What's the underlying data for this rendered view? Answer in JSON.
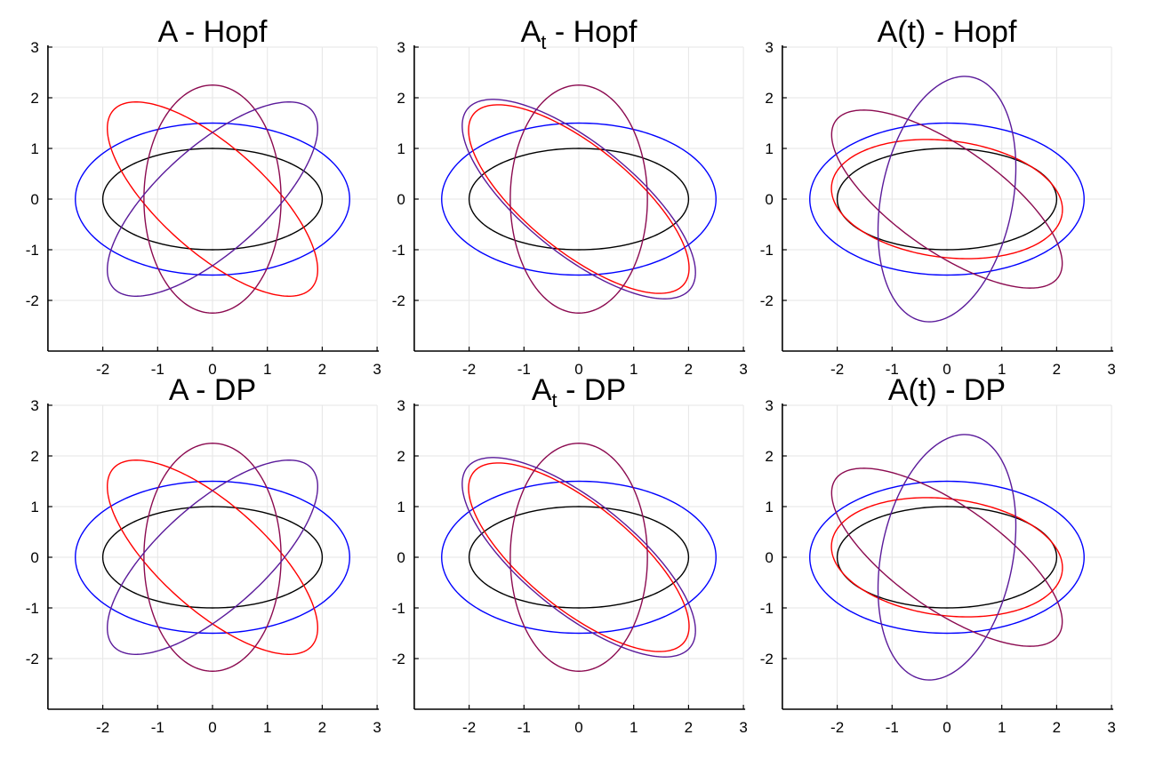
{
  "chart_data": [
    {
      "type": "line",
      "title": {
        "base": "A",
        "sub": "",
        "suffix": " - Hopf"
      },
      "xlim": [
        -3,
        3
      ],
      "ylim": [
        -3,
        3
      ],
      "xticks": [
        "-2",
        "-1",
        "0",
        "1",
        "2",
        "3"
      ],
      "xtick_values": [
        -2,
        -1,
        0,
        1,
        2,
        3
      ],
      "yticks": [
        "-2",
        "-1",
        "0",
        "1",
        "2",
        "3"
      ],
      "ytick_values": [
        -2,
        -1,
        0,
        1,
        2,
        3
      ],
      "grid": true,
      "series": [
        {
          "color": "#000000",
          "shape": "ellipse",
          "a": 2.0,
          "b": 1.0,
          "angle_deg": 0
        },
        {
          "color": "#0000ff",
          "shape": "ellipse",
          "a": 2.5,
          "b": 1.5,
          "angle_deg": 0
        },
        {
          "color": "#ff0000",
          "shape": "ellipse",
          "a": 2.52,
          "b": 1.0,
          "angle_deg": -45
        },
        {
          "color": "#8b0a50",
          "shape": "ellipse",
          "a": 2.25,
          "b": 1.25,
          "angle_deg": 90
        },
        {
          "color": "#5a1a9a",
          "shape": "ellipse",
          "a": 2.52,
          "b": 1.0,
          "angle_deg": 45
        }
      ]
    },
    {
      "type": "line",
      "title": {
        "base": "A",
        "sub": "t",
        "suffix": " - Hopf"
      },
      "xlim": [
        -3,
        3
      ],
      "ylim": [
        -3,
        3
      ],
      "xticks": [
        "-2",
        "-1",
        "0",
        "1",
        "2",
        "3"
      ],
      "xtick_values": [
        -2,
        -1,
        0,
        1,
        2,
        3
      ],
      "yticks": [
        "-2",
        "-1",
        "0",
        "1",
        "2",
        "3"
      ],
      "ytick_values": [
        -2,
        -1,
        0,
        1,
        2,
        3
      ],
      "grid": true,
      "series": [
        {
          "color": "#000000",
          "shape": "ellipse",
          "a": 2.0,
          "b": 1.0,
          "angle_deg": 0
        },
        {
          "color": "#0000ff",
          "shape": "ellipse",
          "a": 2.5,
          "b": 1.5,
          "angle_deg": 0
        },
        {
          "color": "#ff0000",
          "shape": "ellipse",
          "a": 2.55,
          "b": 1.0,
          "angle_deg": -42
        },
        {
          "color": "#8b0a50",
          "shape": "ellipse",
          "a": 2.25,
          "b": 1.25,
          "angle_deg": 90
        },
        {
          "color": "#5a1a9a",
          "shape": "ellipse",
          "a": 2.7,
          "b": 1.05,
          "angle_deg": -42
        }
      ]
    },
    {
      "type": "line",
      "title": {
        "base": "A(t)",
        "sub": "",
        "suffix": " - Hopf"
      },
      "xlim": [
        -3,
        3
      ],
      "ylim": [
        -3,
        3
      ],
      "xticks": [
        "-2",
        "-1",
        "0",
        "1",
        "2",
        "3"
      ],
      "xtick_values": [
        -2,
        -1,
        0,
        1,
        2,
        3
      ],
      "yticks": [
        "-2",
        "-1",
        "0",
        "1",
        "2",
        "3"
      ],
      "ytick_values": [
        -2,
        -1,
        0,
        1,
        2,
        3
      ],
      "grid": true,
      "series": [
        {
          "color": "#000000",
          "shape": "ellipse",
          "a": 2.0,
          "b": 1.0,
          "angle_deg": 0
        },
        {
          "color": "#0000ff",
          "shape": "ellipse",
          "a": 2.5,
          "b": 1.5,
          "angle_deg": 0
        },
        {
          "color": "#ff0000",
          "shape": "ellipse",
          "a": 2.12,
          "b": 1.15,
          "angle_deg": -8
        },
        {
          "color": "#8b0a50",
          "shape": "ellipse",
          "a": 2.55,
          "b": 1.0,
          "angle_deg": -38
        },
        {
          "color": "#5a1a9a",
          "shape": "ellipse",
          "a": 2.45,
          "b": 1.2,
          "angle_deg": 80
        }
      ]
    },
    {
      "type": "line",
      "title": {
        "base": "A",
        "sub": "",
        "suffix": " - DP"
      },
      "xlim": [
        -3,
        3
      ],
      "ylim": [
        -3,
        3
      ],
      "xticks": [
        "-2",
        "-1",
        "0",
        "1",
        "2",
        "3"
      ],
      "xtick_values": [
        -2,
        -1,
        0,
        1,
        2,
        3
      ],
      "yticks": [
        "-2",
        "-1",
        "0",
        "1",
        "2",
        "3"
      ],
      "ytick_values": [
        -2,
        -1,
        0,
        1,
        2,
        3
      ],
      "grid": true,
      "series": [
        {
          "color": "#000000",
          "shape": "ellipse",
          "a": 2.0,
          "b": 1.0,
          "angle_deg": 0
        },
        {
          "color": "#0000ff",
          "shape": "ellipse",
          "a": 2.5,
          "b": 1.5,
          "angle_deg": 0
        },
        {
          "color": "#ff0000",
          "shape": "ellipse",
          "a": 2.52,
          "b": 1.0,
          "angle_deg": -45
        },
        {
          "color": "#8b0a50",
          "shape": "ellipse",
          "a": 2.25,
          "b": 1.25,
          "angle_deg": 90
        },
        {
          "color": "#5a1a9a",
          "shape": "ellipse",
          "a": 2.52,
          "b": 1.0,
          "angle_deg": 45
        }
      ]
    },
    {
      "type": "line",
      "title": {
        "base": "A",
        "sub": "t",
        "suffix": " - DP"
      },
      "xlim": [
        -3,
        3
      ],
      "ylim": [
        -3,
        3
      ],
      "xticks": [
        "-2",
        "-1",
        "0",
        "1",
        "2",
        "3"
      ],
      "xtick_values": [
        -2,
        -1,
        0,
        1,
        2,
        3
      ],
      "yticks": [
        "-2",
        "-1",
        "0",
        "1",
        "2",
        "3"
      ],
      "ytick_values": [
        -2,
        -1,
        0,
        1,
        2,
        3
      ],
      "grid": true,
      "series": [
        {
          "color": "#000000",
          "shape": "ellipse",
          "a": 2.0,
          "b": 1.0,
          "angle_deg": 0
        },
        {
          "color": "#0000ff",
          "shape": "ellipse",
          "a": 2.5,
          "b": 1.5,
          "angle_deg": 0
        },
        {
          "color": "#ff0000",
          "shape": "ellipse",
          "a": 2.55,
          "b": 1.0,
          "angle_deg": -42
        },
        {
          "color": "#8b0a50",
          "shape": "ellipse",
          "a": 2.25,
          "b": 1.25,
          "angle_deg": 90
        },
        {
          "color": "#5a1a9a",
          "shape": "ellipse",
          "a": 2.7,
          "b": 1.05,
          "angle_deg": -42
        }
      ]
    },
    {
      "type": "line",
      "title": {
        "base": "A(t)",
        "sub": "",
        "suffix": " - DP"
      },
      "xlim": [
        -3,
        3
      ],
      "ylim": [
        -3,
        3
      ],
      "xticks": [
        "-2",
        "-1",
        "0",
        "1",
        "2",
        "3"
      ],
      "xtick_values": [
        -2,
        -1,
        0,
        1,
        2,
        3
      ],
      "yticks": [
        "-2",
        "-1",
        "0",
        "1",
        "2",
        "3"
      ],
      "ytick_values": [
        -2,
        -1,
        0,
        1,
        2,
        3
      ],
      "grid": true,
      "series": [
        {
          "color": "#000000",
          "shape": "ellipse",
          "a": 2.0,
          "b": 1.0,
          "angle_deg": 0
        },
        {
          "color": "#0000ff",
          "shape": "ellipse",
          "a": 2.5,
          "b": 1.5,
          "angle_deg": 0
        },
        {
          "color": "#ff0000",
          "shape": "ellipse",
          "a": 2.12,
          "b": 1.15,
          "angle_deg": -8
        },
        {
          "color": "#8b0a50",
          "shape": "ellipse",
          "a": 2.55,
          "b": 1.0,
          "angle_deg": -38
        },
        {
          "color": "#5a1a9a",
          "shape": "ellipse",
          "a": 2.45,
          "b": 1.2,
          "angle_deg": 80
        }
      ]
    }
  ]
}
